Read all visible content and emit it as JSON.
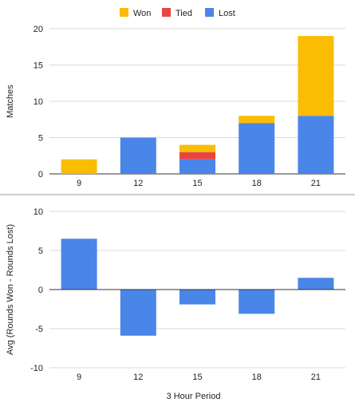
{
  "chart_data": [
    {
      "type": "bar",
      "stacked": true,
      "categories": [
        "9",
        "12",
        "15",
        "18",
        "21"
      ],
      "series": [
        {
          "name": "Lost",
          "color": "#4a86e8",
          "values": [
            0,
            5,
            2,
            7,
            8
          ]
        },
        {
          "name": "Tied",
          "color": "#e84444",
          "values": [
            0,
            0,
            1,
            0,
            0
          ]
        },
        {
          "name": "Won",
          "color": "#fbbc04",
          "values": [
            2,
            0,
            1,
            1,
            11
          ]
        }
      ],
      "legend_order": [
        "Won",
        "Tied",
        "Lost"
      ],
      "legend_position": "top",
      "ylabel": "Matches",
      "ylim": [
        0,
        20
      ],
      "yticks": [
        0,
        5,
        10,
        15,
        20
      ],
      "grid": true
    },
    {
      "type": "bar",
      "categories": [
        "9",
        "12",
        "15",
        "18",
        "21"
      ],
      "series": [
        {
          "color": "#4a86e8",
          "values": [
            6.5,
            -5.9,
            -1.9,
            -3.1,
            1.5
          ]
        }
      ],
      "ylabel": "Avg (Rounds Won - Rounds Lost)",
      "xlabel": "3 Hour Period",
      "ylim": [
        -10,
        10
      ],
      "yticks": [
        -10,
        -5,
        0,
        5,
        10
      ],
      "grid": true
    }
  ]
}
